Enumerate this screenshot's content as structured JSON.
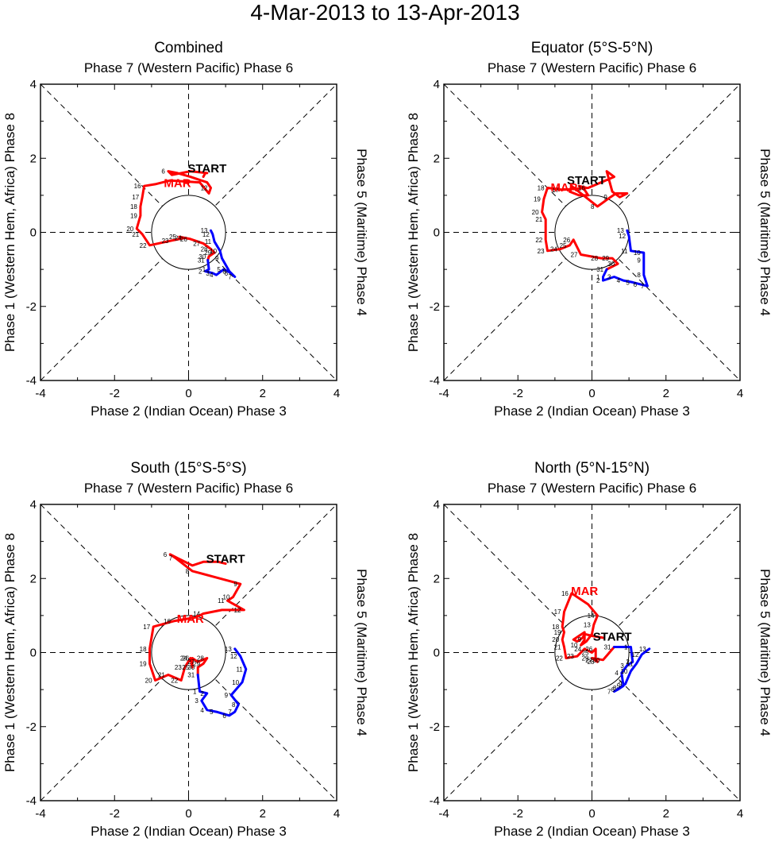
{
  "figure": {
    "title": "4-Mar-2013 to 13-Apr-2013"
  },
  "colors": {
    "march": "#ff0000",
    "april": "#0000ff",
    "axes": "#000000",
    "background": "#ffffff"
  },
  "chart_data": [
    {
      "type": "line",
      "title": "Combined",
      "top_label": "Phase 7 (Western Pacific) Phase 6",
      "bottom_label": "Phase 2 (Indian Ocean) Phase 3",
      "left_label": "Phase 1 (Western Hem, Africa) Phase 8",
      "right_label": "Phase 5 (Maritime) Phase 4",
      "xlim": [
        -4,
        4
      ],
      "ylim": [
        -4,
        4
      ],
      "xticks": [
        "-4",
        "-2",
        "0",
        "2",
        "4"
      ],
      "yticks": [
        "-4",
        "-2",
        "0",
        "2",
        "4"
      ],
      "start_label": "START",
      "start_at": [
        0.5,
        1.62
      ],
      "month_label": "MAR",
      "month_at": [
        -0.3,
        1.22
      ],
      "series": [
        {
          "name": "March",
          "color": "#ff0000",
          "points": [
            [
              0.4,
              1.5
            ],
            [
              0.45,
              1.6
            ],
            [
              0.5,
              1.6
            ],
            [
              0.05,
              1.65
            ],
            [
              -0.45,
              1.55
            ],
            [
              -0.55,
              1.65
            ],
            [
              -0.3,
              1.6
            ],
            [
              0.05,
              1.5
            ],
            [
              0.2,
              1.45
            ],
            [
              0.5,
              1.35
            ],
            [
              0.6,
              1.2
            ],
            [
              0.55,
              1.05
            ],
            [
              0.3,
              1.35
            ],
            [
              -0.5,
              1.4
            ],
            [
              -0.9,
              1.3
            ],
            [
              -1.2,
              1.25
            ],
            [
              -1.25,
              0.95
            ],
            [
              -1.3,
              0.7
            ],
            [
              -1.3,
              0.45
            ],
            [
              -1.4,
              0.1
            ],
            [
              -1.25,
              -0.05
            ],
            [
              -1.05,
              -0.35
            ],
            [
              -0.45,
              -0.22
            ],
            [
              -0.1,
              -0.15
            ],
            [
              -0.25,
              -0.12
            ],
            [
              0.05,
              -0.18
            ],
            [
              0.4,
              -0.3
            ],
            [
              0.6,
              -0.45
            ],
            [
              0.7,
              -0.55
            ],
            [
              0.55,
              -0.65
            ],
            [
              0.52,
              -0.75
            ]
          ],
          "labels": [
            "",
            "",
            "",
            "",
            "",
            "6",
            "",
            "",
            "",
            "",
            "12",
            "",
            "",
            "",
            "",
            "16",
            "17",
            "18",
            "19",
            "20",
            "21",
            "22",
            "23",
            "24",
            "25",
            "26",
            "27",
            "28",
            "29",
            "30",
            "31"
          ]
        },
        {
          "name": "April",
          "color": "#0000ff",
          "points": [
            [
              0.52,
              -0.75
            ],
            [
              0.55,
              -1.0
            ],
            [
              0.45,
              -1.05
            ],
            [
              0.65,
              -1.1
            ],
            [
              0.75,
              -1.15
            ],
            [
              0.95,
              -1.0
            ],
            [
              1.15,
              -1.1
            ],
            [
              1.25,
              -1.2
            ],
            [
              1.1,
              -1.05
            ],
            [
              0.9,
              -0.7
            ],
            [
              0.85,
              -0.5
            ],
            [
              0.7,
              -0.25
            ],
            [
              0.65,
              -0.05
            ],
            [
              0.6,
              0.05
            ]
          ],
          "labels": [
            "",
            "1",
            "2",
            "3",
            "4",
            "5",
            "6",
            "7",
            "8",
            "9",
            "10",
            "11",
            "12",
            "13"
          ]
        }
      ]
    },
    {
      "type": "line",
      "title": "Equator (5°S-5°N)",
      "top_label": "Phase 7 (Western Pacific) Phase 6",
      "bottom_label": "Phase 2 (Indian Ocean) Phase 3",
      "left_label": "Phase 1 (Western Hem, Africa) Phase 8",
      "right_label": "Phase 5 (Maritime) Phase 4",
      "xlim": [
        -4,
        4
      ],
      "ylim": [
        -4,
        4
      ],
      "xticks": [
        "-4",
        "-2",
        "0",
        "2",
        "4"
      ],
      "yticks": [
        "-4",
        "-2",
        "0",
        "2",
        "4"
      ],
      "start_label": "START",
      "start_at": [
        -0.15,
        1.3
      ],
      "month_label": "MAR",
      "month_at": [
        -0.75,
        1.1
      ],
      "series": [
        {
          "name": "March",
          "color": "#ff0000",
          "points": [
            [
              -0.15,
              1.2
            ],
            [
              -0.35,
              1.25
            ],
            [
              -0.2,
              1.15
            ],
            [
              -0.1,
              1.0
            ],
            [
              -0.35,
              1.0
            ],
            [
              -0.6,
              1.1
            ],
            [
              -0.55,
              1.25
            ],
            [
              0.15,
              0.7
            ],
            [
              0.5,
              0.95
            ],
            [
              0.65,
              1.05
            ],
            [
              0.95,
              1.05
            ],
            [
              0.75,
              0.95
            ],
            [
              0.55,
              1.1
            ],
            [
              0.4,
              1.65
            ],
            [
              0.6,
              1.5
            ],
            [
              -0.1,
              1.2
            ],
            [
              -0.8,
              1.15
            ],
            [
              -1.2,
              1.2
            ],
            [
              -1.3,
              0.9
            ],
            [
              -1.35,
              0.55
            ],
            [
              -1.25,
              0.35
            ],
            [
              -1.25,
              -0.2
            ],
            [
              -1.2,
              -0.5
            ],
            [
              -0.85,
              -0.45
            ],
            [
              -0.6,
              -0.35
            ],
            [
              -0.5,
              -0.2
            ],
            [
              -0.3,
              -0.6
            ],
            [
              0.25,
              -0.7
            ],
            [
              0.55,
              -0.7
            ],
            [
              0.7,
              -0.85
            ],
            [
              0.4,
              -1.0
            ]
          ],
          "labels": [
            "",
            "",
            "",
            "",
            "",
            "",
            "",
            "8",
            "9",
            "",
            "",
            "",
            "",
            "",
            "",
            "16",
            "17",
            "18",
            "19",
            "20",
            "21",
            "22",
            "23",
            "24",
            "25",
            "26",
            "27",
            "28",
            "29",
            "30",
            "31"
          ]
        },
        {
          "name": "April",
          "color": "#0000ff",
          "points": [
            [
              0.4,
              -1.0
            ],
            [
              0.3,
              -1.2
            ],
            [
              0.3,
              -1.3
            ],
            [
              0.6,
              -1.2
            ],
            [
              0.85,
              -1.3
            ],
            [
              1.1,
              -1.35
            ],
            [
              1.3,
              -1.4
            ],
            [
              1.5,
              -1.45
            ],
            [
              1.4,
              -1.15
            ],
            [
              1.4,
              -0.75
            ],
            [
              1.4,
              -0.55
            ],
            [
              1.05,
              -0.5
            ],
            [
              1.0,
              -0.1
            ],
            [
              0.95,
              0.05
            ]
          ],
          "labels": [
            "",
            "1",
            "2",
            "3",
            "4",
            "5",
            "6",
            "7",
            "8",
            "9",
            "10",
            "11",
            "12",
            "13"
          ]
        }
      ]
    },
    {
      "type": "line",
      "title": "South (15°S-5°S)",
      "top_label": "Phase 7 (Western Pacific) Phase 6",
      "bottom_label": "Phase 2 (Indian Ocean) Phase 3",
      "left_label": "Phase 1 (Western Hem, Africa) Phase 8",
      "right_label": "Phase 5 (Maritime) Phase 4",
      "xlim": [
        -4,
        4
      ],
      "ylim": [
        -4,
        4
      ],
      "xticks": [
        "-4",
        "-2",
        "0",
        "2",
        "4"
      ],
      "yticks": [
        "-4",
        "-2",
        "0",
        "2",
        "4"
      ],
      "start_label": "START",
      "start_at": [
        1.0,
        2.42
      ],
      "month_label": "MAR",
      "month_at": [
        0.05,
        0.8
      ],
      "series": [
        {
          "name": "March",
          "color": "#ff0000",
          "points": [
            [
              1.0,
              2.4
            ],
            [
              0.8,
              2.45
            ],
            [
              0.4,
              2.45
            ],
            [
              0.1,
              2.35
            ],
            [
              -0.3,
              2.55
            ],
            [
              -0.5,
              2.65
            ],
            [
              -0.35,
              2.55
            ],
            [
              0.1,
              2.2
            ],
            [
              1.4,
              1.85
            ],
            [
              1.2,
              1.5
            ],
            [
              1.05,
              1.4
            ],
            [
              1.5,
              1.15
            ],
            [
              0.9,
              1.15
            ],
            [
              0.4,
              1.05
            ],
            [
              0.2,
              0.95
            ],
            [
              -0.4,
              0.85
            ],
            [
              -0.95,
              0.7
            ],
            [
              -1.05,
              0.1
            ],
            [
              -1.05,
              -0.3
            ],
            [
              -0.9,
              -0.75
            ],
            [
              -0.55,
              -0.6
            ],
            [
              -0.2,
              -0.75
            ],
            [
              -0.1,
              -0.4
            ],
            [
              0.05,
              -0.15
            ],
            [
              0.1,
              -0.4
            ],
            [
              0.1,
              -0.15
            ],
            [
              0.25,
              -0.25
            ],
            [
              0.5,
              -0.15
            ],
            [
              0.4,
              -0.3
            ],
            [
              0.25,
              -0.4
            ],
            [
              0.25,
              -0.6
            ]
          ],
          "labels": [
            "",
            "",
            "",
            "",
            "",
            "6",
            "7",
            "8",
            "9",
            "10",
            "11",
            "12",
            "",
            "14",
            "",
            "16",
            "17",
            "18",
            "19",
            "20",
            "21",
            "22",
            "23",
            "24",
            "25",
            "26",
            "27",
            "28",
            "29",
            "30",
            "31"
          ]
        },
        {
          "name": "April",
          "color": "#0000ff",
          "points": [
            [
              0.25,
              -0.6
            ],
            [
              0.3,
              -1.05
            ],
            [
              0.5,
              -1.1
            ],
            [
              0.35,
              -1.3
            ],
            [
              0.5,
              -1.55
            ],
            [
              0.75,
              -1.6
            ],
            [
              1.1,
              -1.7
            ],
            [
              1.25,
              -1.6
            ],
            [
              1.35,
              -1.4
            ],
            [
              1.15,
              -1.15
            ],
            [
              1.45,
              -0.8
            ],
            [
              1.55,
              -0.45
            ],
            [
              1.4,
              -0.1
            ],
            [
              1.25,
              0.1
            ]
          ],
          "labels": [
            "",
            "1",
            "2",
            "3",
            "4",
            "5",
            "6",
            "7",
            "8",
            "9",
            "10",
            "11",
            "12",
            "13"
          ]
        }
      ]
    },
    {
      "type": "line",
      "title": "North (5°N-15°N)",
      "top_label": "Phase 7 (Western Pacific) Phase 6",
      "bottom_label": "Phase 2 (Indian Ocean) Phase 3",
      "left_label": "Phase 1 (Western Hem, Africa) Phase 8",
      "right_label": "Phase 5 (Maritime) Phase 4",
      "xlim": [
        -4,
        4
      ],
      "ylim": [
        -4,
        4
      ],
      "xticks": [
        "-4",
        "-2",
        "0",
        "2",
        "4"
      ],
      "yticks": [
        "-4",
        "-2",
        "0",
        "2",
        "4"
      ],
      "start_label": "START",
      "start_at": [
        0.55,
        0.32
      ],
      "month_label": "MAR",
      "month_at": [
        -0.2,
        1.55
      ],
      "series": [
        {
          "name": "March",
          "color": "#ff0000",
          "points": [
            [
              0.3,
              0.4
            ],
            [
              0.0,
              0.45
            ],
            [
              -0.2,
              0.5
            ],
            [
              -0.25,
              0.4
            ],
            [
              -0.4,
              0.3
            ],
            [
              -0.5,
              0.35
            ],
            [
              -0.35,
              0.45
            ],
            [
              -0.2,
              0.55
            ],
            [
              -0.2,
              0.35
            ],
            [
              -0.3,
              0.2
            ],
            [
              -0.15,
              0.3
            ],
            [
              0.0,
              0.5
            ],
            [
              0.05,
              0.75
            ],
            [
              0.15,
              1.0
            ],
            [
              -0.1,
              1.3
            ],
            [
              -0.55,
              1.6
            ],
            [
              -0.75,
              1.1
            ],
            [
              -0.8,
              0.7
            ],
            [
              -0.75,
              0.55
            ],
            [
              -0.8,
              0.35
            ],
            [
              -0.75,
              0.15
            ],
            [
              -0.7,
              -0.15
            ],
            [
              -0.4,
              -0.1
            ],
            [
              -0.2,
              0.1
            ],
            [
              0.0,
              0.0
            ],
            [
              0.1,
              0.1
            ],
            [
              0.1,
              -0.2
            ],
            [
              0.15,
              -0.25
            ],
            [
              0.0,
              -0.15
            ],
            [
              0.3,
              -0.2
            ],
            [
              0.6,
              0.15
            ]
          ],
          "labels": [
            "",
            "",
            "",
            "",
            "",
            "",
            "",
            "",
            "9",
            "10",
            "",
            "",
            "13",
            "14",
            "",
            "16",
            "17",
            "18",
            "19",
            "20",
            "21",
            "22",
            "23",
            "24",
            "25",
            "26",
            "27",
            "28",
            "29",
            "30",
            "31"
          ]
        },
        {
          "name": "April",
          "color": "#0000ff",
          "points": [
            [
              0.6,
              0.15
            ],
            [
              1.05,
              0.15
            ],
            [
              1.1,
              -0.25
            ],
            [
              0.95,
              -0.35
            ],
            [
              0.8,
              -0.55
            ],
            [
              0.85,
              -0.9
            ],
            [
              0.7,
              -1.0
            ],
            [
              0.6,
              -1.05
            ],
            [
              0.75,
              -0.95
            ],
            [
              0.9,
              -0.85
            ],
            [
              1.05,
              -0.5
            ],
            [
              1.2,
              -0.3
            ],
            [
              1.35,
              -0.05
            ],
            [
              1.55,
              0.1
            ]
          ],
          "labels": [
            "",
            "1",
            "2",
            "3",
            "4",
            "5",
            "6",
            "7",
            "8",
            "9",
            "10",
            "11",
            "12",
            "13"
          ]
        }
      ]
    }
  ]
}
